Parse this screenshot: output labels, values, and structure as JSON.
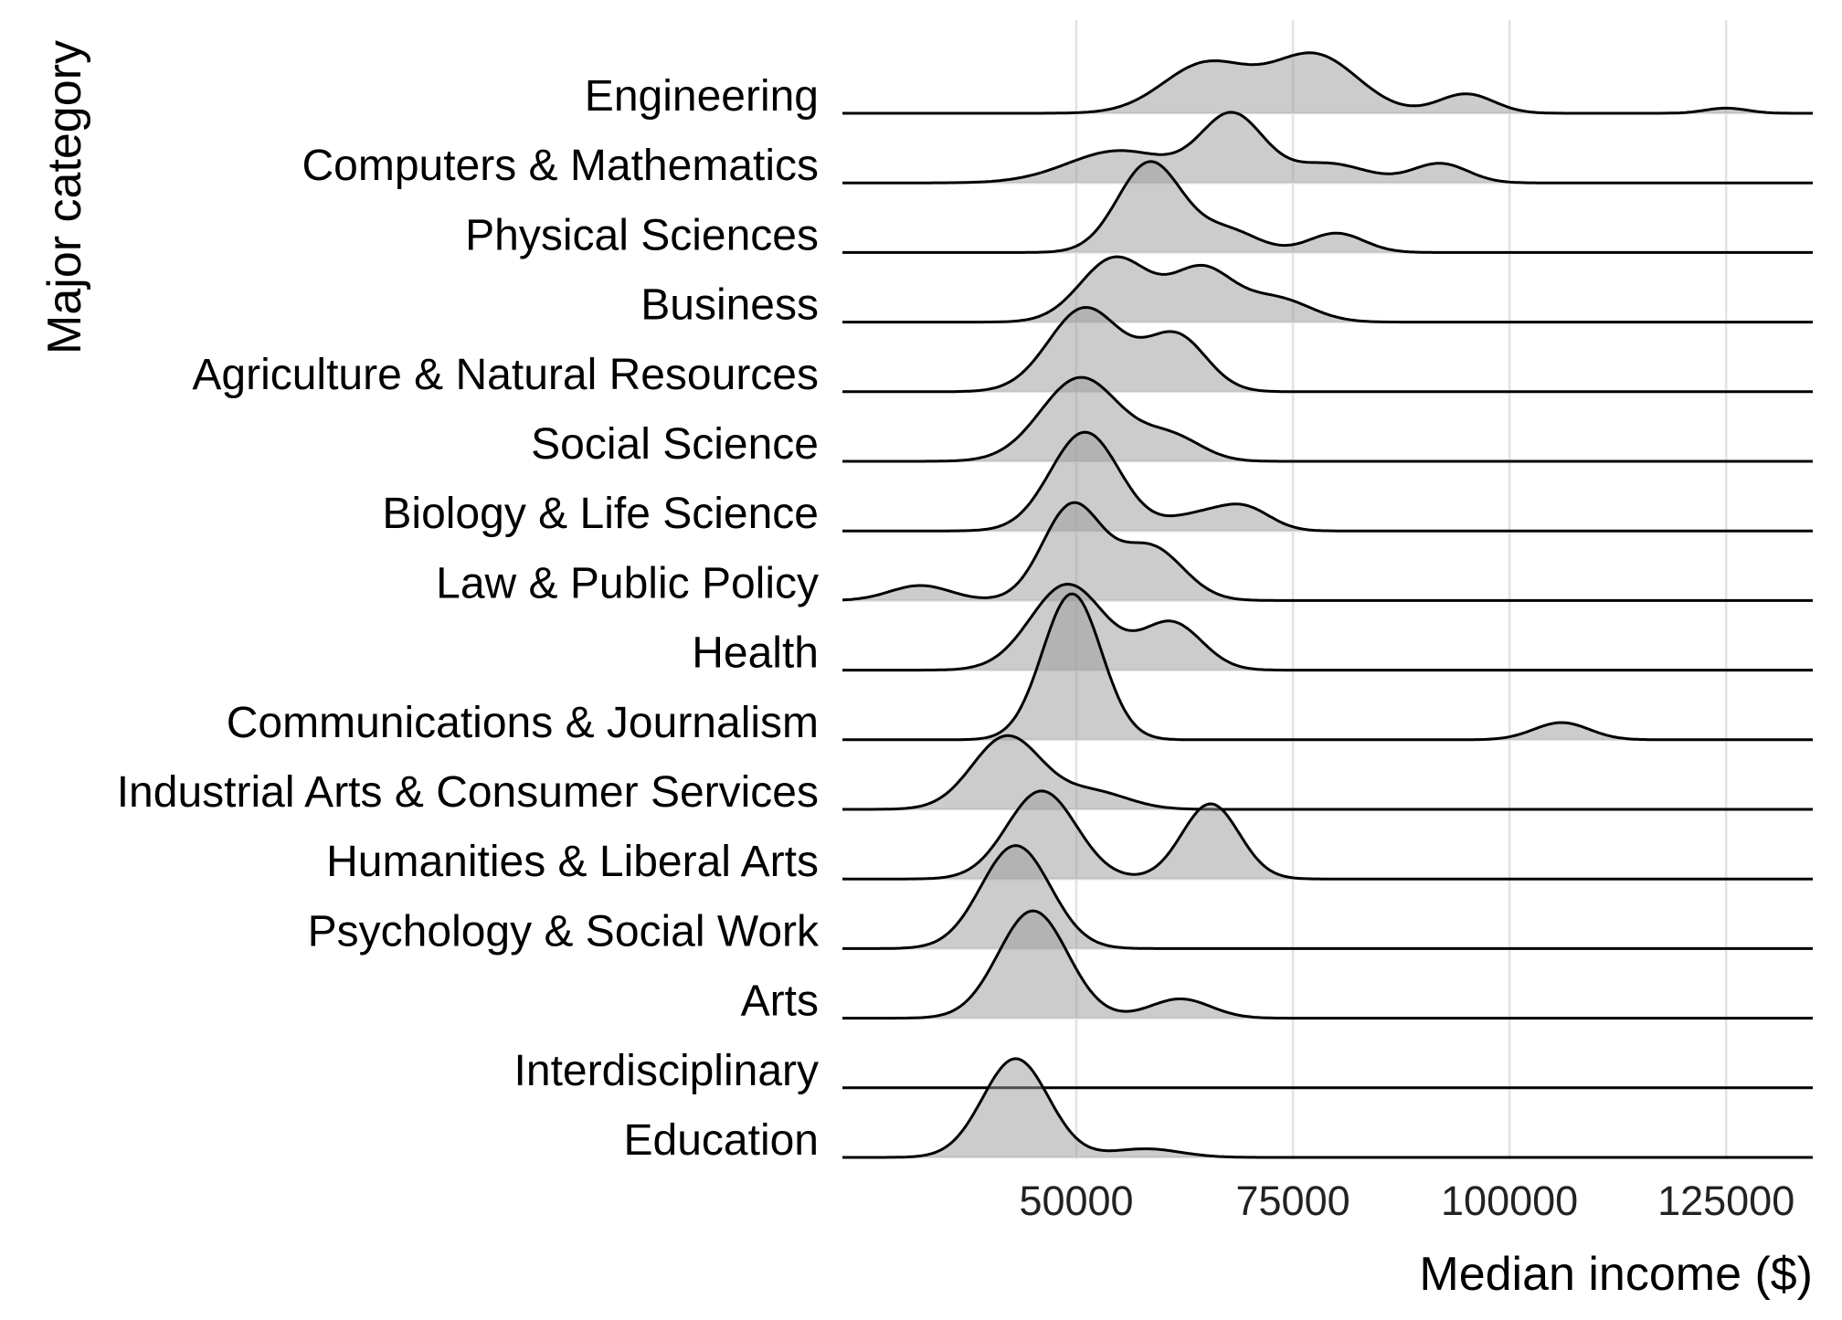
{
  "chart_data": {
    "type": "ridgeline",
    "xlabel": "Median income ($)",
    "ylabel": "Major category",
    "xlim": [
      23000,
      135000
    ],
    "x_ticks": [
      50000,
      75000,
      100000,
      125000
    ],
    "grid": true,
    "legend": "none",
    "fill_color": "#9a9a9a",
    "line_color": "#000000",
    "grid_color": "#e3e3e3",
    "categories": [
      "Engineering",
      "Computers & Mathematics",
      "Physical Sciences",
      "Business",
      "Agriculture & Natural Resources",
      "Social Science",
      "Biology & Life Science",
      "Law & Public Policy",
      "Health",
      "Communications & Journalism",
      "Industrial Arts & Consumer Services",
      "Humanities & Liberal Arts",
      "Psychology & Social Work",
      "Arts",
      "Interdisciplinary",
      "Education"
    ],
    "series": [
      {
        "category": "Engineering",
        "x_range": [
          23000,
          135000
        ],
        "peaks": [
          {
            "x": 65000,
            "height": 1.15,
            "sd": 5000
          },
          {
            "x": 77500,
            "height": 1.35,
            "sd": 5000
          },
          {
            "x": 95000,
            "height": 0.45,
            "sd": 3200
          },
          {
            "x": 125000,
            "height": 0.12,
            "sd": 2400
          }
        ]
      },
      {
        "category": "Computers & Mathematics",
        "x_range": [
          23000,
          135000
        ],
        "peaks": [
          {
            "x": 55000,
            "height": 0.75,
            "sd": 6000
          },
          {
            "x": 68000,
            "height": 1.55,
            "sd": 3600
          },
          {
            "x": 79000,
            "height": 0.45,
            "sd": 4500
          },
          {
            "x": 92000,
            "height": 0.45,
            "sd": 3200
          }
        ]
      },
      {
        "category": "Physical Sciences",
        "x_range": [
          23000,
          135000
        ],
        "peaks": [
          {
            "x": 58500,
            "height": 2.1,
            "sd": 3700
          },
          {
            "x": 67500,
            "height": 0.5,
            "sd": 3500
          },
          {
            "x": 80000,
            "height": 0.45,
            "sd": 3200
          }
        ]
      },
      {
        "category": "Business",
        "x_range": [
          23000,
          135000
        ],
        "peaks": [
          {
            "x": 54500,
            "height": 1.5,
            "sd": 4000
          },
          {
            "x": 64500,
            "height": 1.2,
            "sd": 3500
          },
          {
            "x": 73000,
            "height": 0.55,
            "sd": 4000
          }
        ]
      },
      {
        "category": "Agriculture & Natural Resources",
        "x_range": [
          23000,
          135000
        ],
        "peaks": [
          {
            "x": 51000,
            "height": 1.95,
            "sd": 4200
          },
          {
            "x": 61500,
            "height": 1.3,
            "sd": 3500
          }
        ]
      },
      {
        "category": "Social Science",
        "x_range": [
          23000,
          135000
        ],
        "peaks": [
          {
            "x": 50500,
            "height": 1.95,
            "sd": 4600
          },
          {
            "x": 61000,
            "height": 0.55,
            "sd": 3500
          }
        ]
      },
      {
        "category": "Biology & Life Science",
        "x_range": [
          23000,
          135000
        ],
        "peaks": [
          {
            "x": 51000,
            "height": 2.3,
            "sd": 4000
          },
          {
            "x": 64000,
            "height": 0.35,
            "sd": 3500
          },
          {
            "x": 69500,
            "height": 0.5,
            "sd": 3000
          }
        ]
      },
      {
        "category": "Law & Public Policy",
        "x_range": [
          23000,
          135000
        ],
        "peaks": [
          {
            "x": 32000,
            "height": 0.35,
            "sd": 3500
          },
          {
            "x": 49500,
            "height": 2.2,
            "sd": 3400
          },
          {
            "x": 58500,
            "height": 1.25,
            "sd": 3800
          }
        ]
      },
      {
        "category": "Health",
        "x_range": [
          23000,
          135000
        ],
        "peaks": [
          {
            "x": 49000,
            "height": 2.0,
            "sd": 4300
          },
          {
            "x": 61000,
            "height": 1.1,
            "sd": 3500
          }
        ]
      },
      {
        "category": "Communications & Journalism",
        "x_range": [
          23000,
          135000
        ],
        "peaks": [
          {
            "x": 49500,
            "height": 3.4,
            "sd": 3400
          },
          {
            "x": 106000,
            "height": 0.4,
            "sd": 3200
          }
        ]
      },
      {
        "category": "Industrial Arts & Consumer Services",
        "x_range": [
          23000,
          135000
        ],
        "peaks": [
          {
            "x": 42000,
            "height": 1.7,
            "sd": 4000
          },
          {
            "x": 52000,
            "height": 0.4,
            "sd": 4000
          }
        ]
      },
      {
        "category": "Humanities & Liberal Arts",
        "x_range": [
          23000,
          135000
        ],
        "peaks": [
          {
            "x": 46000,
            "height": 2.05,
            "sd": 4000
          },
          {
            "x": 65500,
            "height": 1.75,
            "sd": 3300
          }
        ]
      },
      {
        "category": "Psychology & Social Work",
        "x_range": [
          23000,
          135000
        ],
        "peaks": [
          {
            "x": 43000,
            "height": 2.4,
            "sd": 4000
          }
        ]
      },
      {
        "category": "Arts",
        "x_range": [
          23000,
          135000
        ],
        "peaks": [
          {
            "x": 45000,
            "height": 2.5,
            "sd": 4000
          },
          {
            "x": 62000,
            "height": 0.45,
            "sd": 3500
          }
        ]
      },
      {
        "category": "Interdisciplinary",
        "x_range": [
          23000,
          135000
        ],
        "peaks": []
      },
      {
        "category": "Education",
        "x_range": [
          23000,
          135000
        ],
        "peaks": [
          {
            "x": 43000,
            "height": 2.3,
            "sd": 3800
          },
          {
            "x": 58000,
            "height": 0.2,
            "sd": 4000
          }
        ]
      }
    ]
  }
}
